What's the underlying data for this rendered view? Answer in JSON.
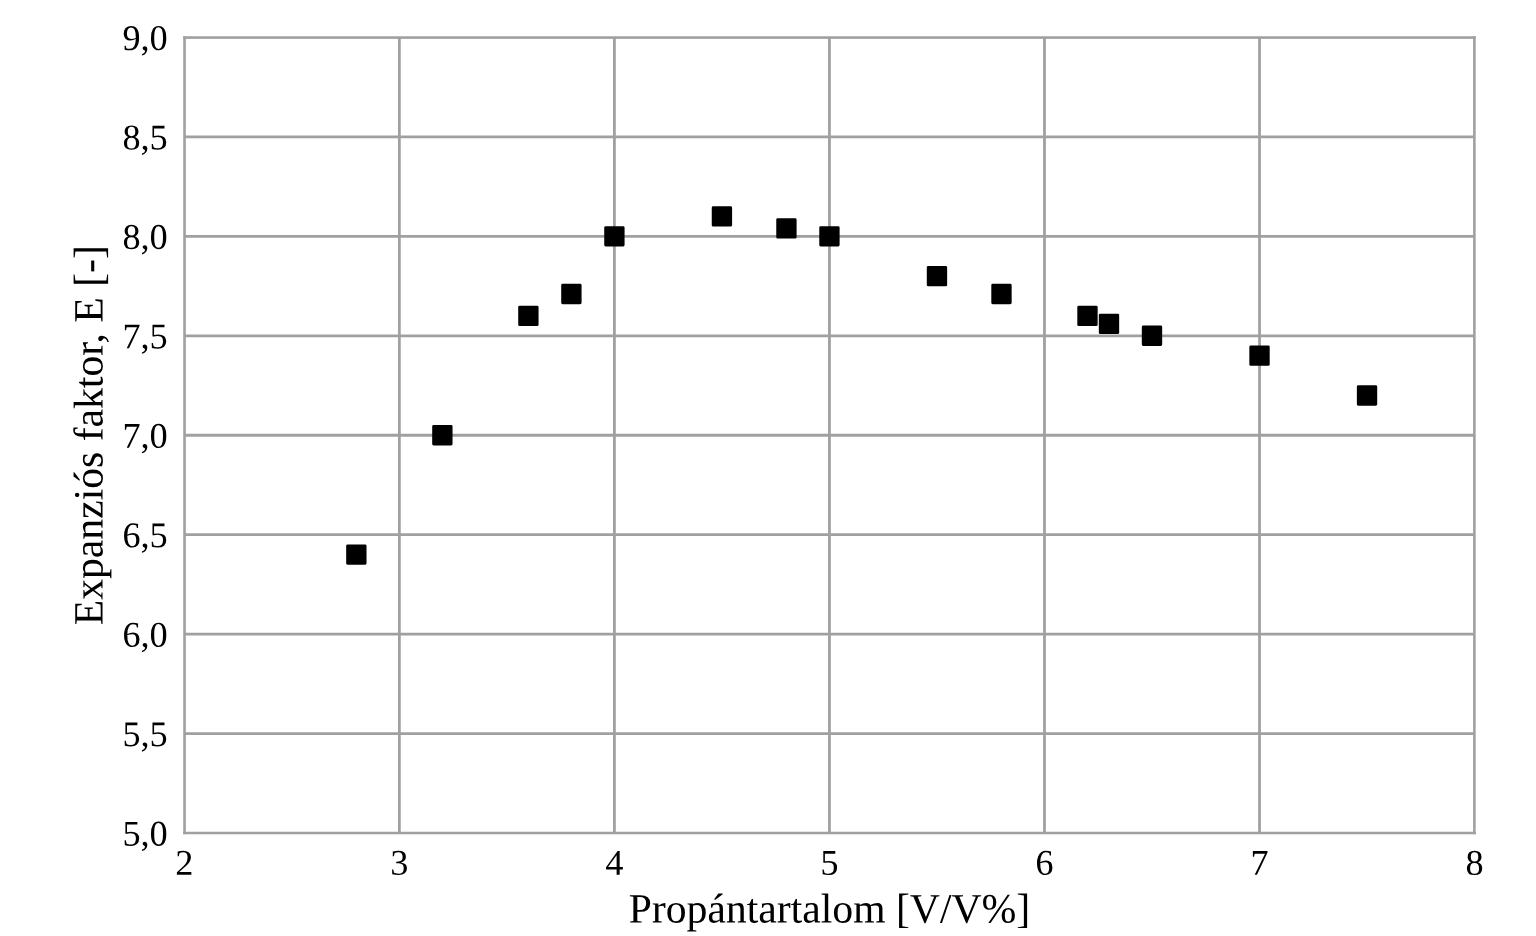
{
  "chart_data": {
    "type": "scatter",
    "xlabel": "Propántartalom [V/V%]",
    "ylabel": "Expanziós faktor, E [-]",
    "x": [
      2.8,
      3.2,
      3.6,
      3.8,
      4.0,
      4.5,
      4.8,
      5.0,
      5.5,
      5.8,
      6.2,
      6.3,
      6.5,
      7.0,
      7.5
    ],
    "series": [
      {
        "color": "#000000",
        "values": [
          6.4,
          7.0,
          7.6,
          7.71,
          8.0,
          8.1,
          8.04,
          8.0,
          7.8,
          7.71,
          7.6,
          7.56,
          7.5,
          7.4,
          7.2
        ]
      }
    ],
    "xlim": [
      2,
      8
    ],
    "xticks": [
      2,
      3,
      4,
      5,
      6,
      7,
      8
    ],
    "ylim": [
      5,
      9
    ],
    "yticks": [
      {
        "value": 5,
        "label": "5,0"
      },
      {
        "value": 5.5,
        "label": "5,5"
      },
      {
        "value": 6,
        "label": "6,0"
      },
      {
        "value": 6.5,
        "label": "6,5"
      },
      {
        "value": 7,
        "label": "7,0"
      },
      {
        "value": 7.5,
        "label": "7,5"
      },
      {
        "value": 8,
        "label": "8,0"
      },
      {
        "value": 8.5,
        "label": "8,5"
      },
      {
        "value": 9,
        "label": "9,0"
      }
    ],
    "grid": true,
    "marker": "square"
  }
}
